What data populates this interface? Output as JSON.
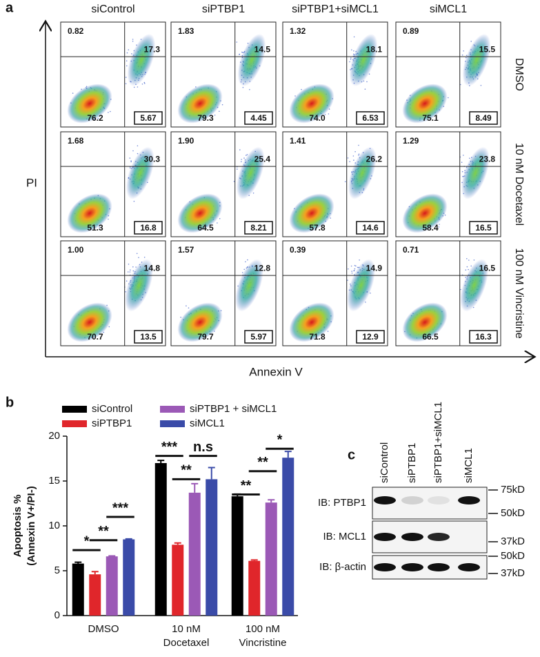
{
  "panel_a": {
    "label": "a",
    "columns": [
      "siControl",
      "siPTBP1",
      "siPTBP1+siMCL1",
      "siMCL1"
    ],
    "rows": [
      "DMSO",
      "10 nM Docetaxel",
      "100 nM Vincristine"
    ],
    "y_axis": "PI",
    "x_axis": "Annexin V",
    "quadrants": [
      [
        [
          "0.82",
          "17.3",
          "76.2",
          "5.67"
        ],
        [
          "1.83",
          "14.5",
          "79.3",
          "4.45"
        ],
        [
          "1.32",
          "18.1",
          "74.0",
          "6.53"
        ],
        [
          "0.89",
          "15.5",
          "75.1",
          "8.49"
        ]
      ],
      [
        [
          "1.68",
          "30.3",
          "51.3",
          "16.8"
        ],
        [
          "1.90",
          "25.4",
          "64.5",
          "8.21"
        ],
        [
          "1.41",
          "26.2",
          "57.8",
          "14.6"
        ],
        [
          "1.29",
          "23.8",
          "58.4",
          "16.5"
        ]
      ],
      [
        [
          "1.00",
          "14.8",
          "70.7",
          "13.5"
        ],
        [
          "1.57",
          "12.8",
          "79.7",
          "5.97"
        ],
        [
          "0.39",
          "14.9",
          "71.8",
          "12.9"
        ],
        [
          "0.71",
          "16.5",
          "66.5",
          "16.3"
        ]
      ]
    ]
  },
  "chart_data": {
    "type": "bar",
    "label": "b",
    "ylabel": [
      "Apoptosis %",
      "(Annexin V+/PI-)"
    ],
    "categories": [
      [
        "DMSO"
      ],
      [
        "10 nM",
        "Docetaxel"
      ],
      [
        "100 nM",
        "Vincristine"
      ]
    ],
    "series": [
      {
        "name": "siControl",
        "color": "#000000",
        "values": [
          5.8,
          17.0,
          13.3
        ],
        "errors": [
          0.15,
          0.3,
          0.25
        ]
      },
      {
        "name": "siPTBP1",
        "color": "#e0262b",
        "values": [
          4.6,
          7.9,
          6.1
        ],
        "errors": [
          0.3,
          0.2,
          0.1
        ]
      },
      {
        "name": "siPTBP1 + siMCL1",
        "color": "#9b59b6",
        "values": [
          6.6,
          13.7,
          12.6
        ],
        "errors": [
          0.05,
          1.0,
          0.3
        ]
      },
      {
        "name": "siMCL1",
        "color": "#3a4ba8",
        "values": [
          8.5,
          15.2,
          17.6
        ],
        "errors": [
          0.05,
          1.3,
          0.7
        ]
      }
    ],
    "ylim": [
      0,
      20
    ],
    "yticks": [
      0,
      5,
      10,
      15,
      20
    ],
    "annotations": [
      "*",
      "**",
      "***",
      "***",
      "**",
      "n.s",
      "**",
      "**",
      "*"
    ]
  },
  "panel_c": {
    "label": "c",
    "lanes": [
      "siControl",
      "siPTBP1",
      "siPTBP1+siMCL1",
      "siMCL1"
    ],
    "blots": [
      "IB: PTBP1",
      "IB: MCL1",
      "IB: β-actin"
    ],
    "markers": [
      "75kD",
      "50kD",
      "37kD",
      "50kD",
      "37kD"
    ]
  }
}
